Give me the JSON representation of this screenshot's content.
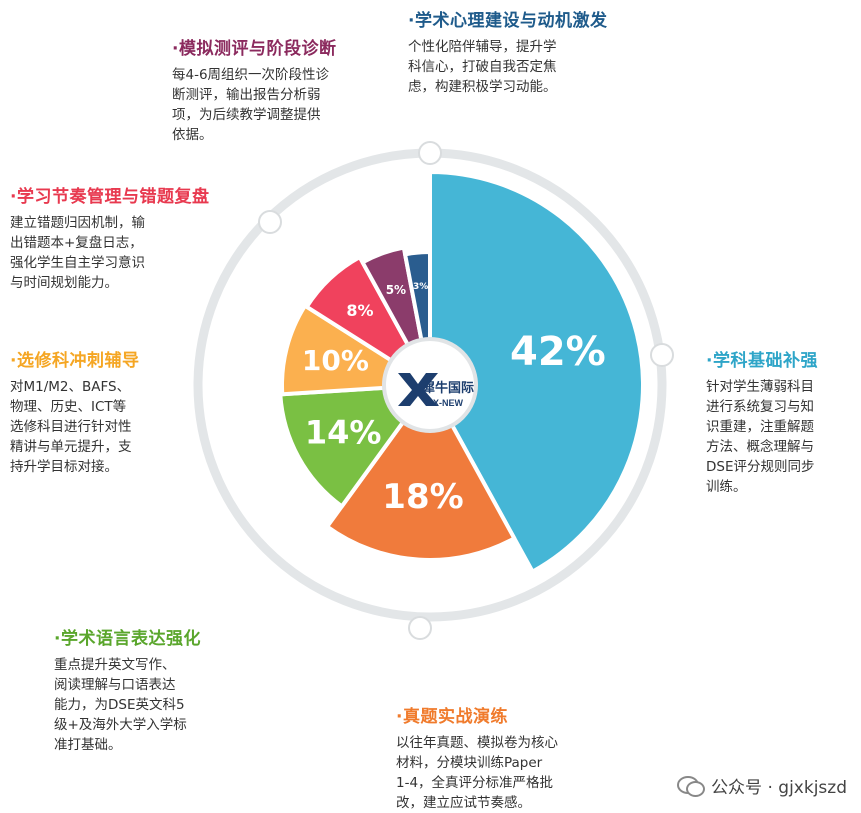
{
  "chart_data": {
    "type": "pie",
    "categories": [
      "学科基础补强",
      "真题实战演练",
      "学术语言表达强化",
      "选修科冲刺辅导",
      "学习节奏管理与错题复盘",
      "模拟测评与阶段诊断",
      "学术心理建设与动机激发"
    ],
    "values": [
      42,
      18,
      14,
      10,
      8,
      5,
      3
    ],
    "value_labels": [
      "42%",
      "18%",
      "14%",
      "10%",
      "8%",
      "5%",
      "3%"
    ],
    "colors": [
      "#45b6d6",
      "#f07b3c",
      "#7ac043",
      "#fbb04f",
      "#f0425d",
      "#8b3c6b",
      "#2a5d8f"
    ]
  },
  "logo": {
    "brand": "犀牛国际",
    "sub": "X-NEW"
  },
  "callouts": [
    {
      "title": "·学术心理建设与动机激发",
      "color": "#1f5b8b",
      "lines": [
        "个性化陪伴辅导，提升学",
        "科信心，打破自我否定焦",
        "虑，构建积极学习动能。"
      ]
    },
    {
      "title": "·模拟测评与阶段诊断",
      "color": "#8b2a5e",
      "lines": [
        "每4-6周组织一次阶段性诊",
        "断测评，输出报告分析弱",
        "项，为后续教学调整提供",
        "依据。"
      ]
    },
    {
      "title": "·学习节奏管理与错题复盘",
      "color": "#e8394f",
      "lines": [
        "建立错题归因机制，输",
        "出错题本+复盘日志，",
        "强化学生自主学习意识",
        "与时间规划能力。"
      ]
    },
    {
      "title": "·选修科冲刺辅导",
      "color": "#f5a623",
      "lines": [
        "对M1/M2、BAFS、",
        "物理、历史、ICT等",
        "选修科目进行针对性",
        "精讲与单元提升，支",
        "持升学目标对接。"
      ]
    },
    {
      "title": "·学科基础补强",
      "color": "#2ea5c8",
      "lines": [
        "针对学生薄弱科目",
        "进行系统复习与知",
        "识重建，注重解题",
        "方法、概念理解与",
        "DSE评分规则同步",
        "训练。"
      ]
    },
    {
      "title": "·学术语言表达强化",
      "color": "#5aa62c",
      "lines": [
        "重点提升英文写作、",
        "阅读理解与口语表达",
        "能力，为DSE英文科5",
        "级+及海外大学入学标",
        "准打基础。"
      ]
    },
    {
      "title": "·真题实战演练",
      "color": "#f07b2c",
      "lines": [
        "以往年真题、模拟卷为核心",
        "材料，分模块训练Paper",
        "1-4，全真评分标准严格批",
        "改，建立应试节奏感。"
      ]
    }
  ],
  "watermark": {
    "text": "公众号 · gjxkjszd",
    "icon": "wechat-icon"
  }
}
